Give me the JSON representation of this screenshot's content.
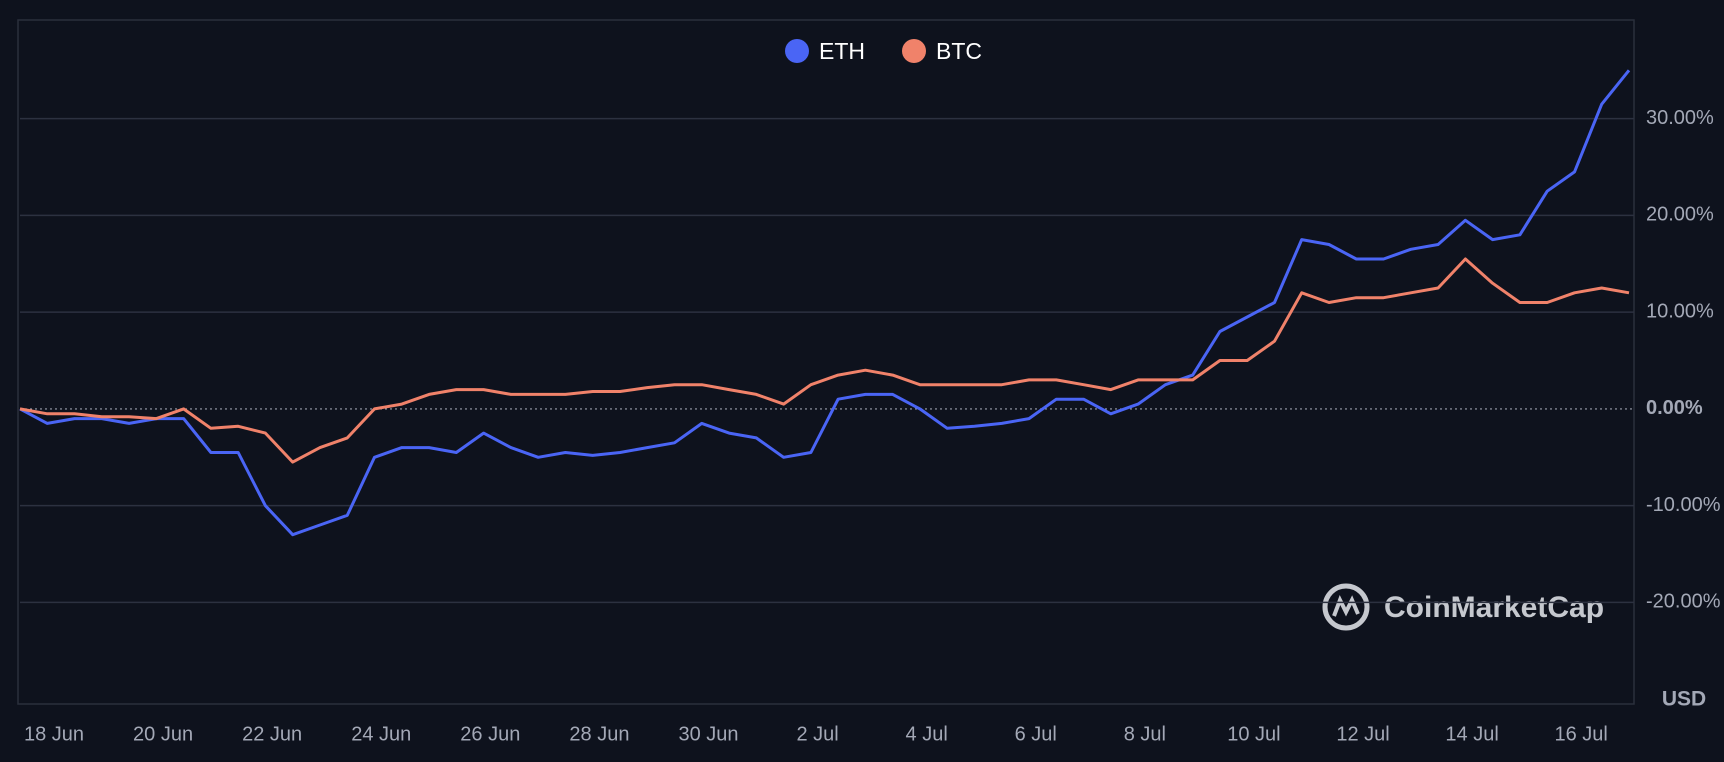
{
  "chart_data": {
    "type": "line",
    "categories": [
      "18 Jun",
      null,
      null,
      null,
      "20 Jun",
      null,
      null,
      null,
      "22 Jun",
      null,
      null,
      null,
      "24 Jun",
      null,
      null,
      null,
      "26 Jun",
      null,
      null,
      null,
      "28 Jun",
      null,
      null,
      null,
      "30 Jun",
      null,
      null,
      null,
      "2 Jul",
      null,
      null,
      null,
      "4 Jul",
      null,
      null,
      null,
      "6 Jul",
      null,
      null,
      null,
      "8 Jul",
      null,
      null,
      null,
      "10 Jul",
      null,
      null,
      null,
      "12 Jul",
      null,
      null,
      null,
      "14 Jul",
      null,
      null,
      null,
      "16 Jul",
      null,
      null,
      null
    ],
    "series": [
      {
        "name": "ETH",
        "color": "#4a65f5",
        "values": [
          0,
          -1.5,
          -1,
          -1,
          -1.5,
          -1,
          -1,
          -4.5,
          -4.5,
          -10,
          -13,
          -12,
          -11,
          -5,
          -4,
          -4,
          -4.5,
          -2.5,
          -4,
          -5,
          -4.5,
          -4.8,
          -4.5,
          -4,
          -3.5,
          -1.5,
          -2.5,
          -3,
          -5,
          -4.5,
          1,
          1.5,
          1.5,
          0,
          -2,
          -1.8,
          -1.5,
          -1,
          1,
          1,
          -0.5,
          0.5,
          2.5,
          3.5,
          8,
          9.5,
          11,
          17.5,
          17,
          15.5,
          15.5,
          16.5,
          17,
          19.5,
          17.5,
          18,
          22.5,
          24.5,
          31.5,
          35
        ]
      },
      {
        "name": "BTC",
        "color": "#f0826a",
        "values": [
          0,
          -0.5,
          -0.5,
          -0.8,
          -0.8,
          -1,
          0,
          -2,
          -1.8,
          -2.5,
          -5.5,
          -4,
          -3,
          0,
          0.5,
          1.5,
          2,
          2,
          1.5,
          1.5,
          1.5,
          1.8,
          1.8,
          2.2,
          2.5,
          2.5,
          2,
          1.5,
          0.5,
          2.5,
          3.5,
          4,
          3.5,
          2.5,
          2.5,
          2.5,
          2.5,
          3,
          3,
          2.5,
          2,
          3,
          3,
          3,
          5,
          5,
          7,
          12,
          11,
          11.5,
          11.5,
          12,
          12.5,
          15.5,
          13,
          11,
          11,
          12,
          12.5,
          12
        ]
      }
    ],
    "ylim": [
      -30.5,
      40.2
    ],
    "yticks": [
      {
        "value": -20,
        "label": "-20.00%"
      },
      {
        "value": -10,
        "label": "-10.00%"
      },
      {
        "value": 0,
        "label": "0.00%"
      },
      {
        "value": 10,
        "label": "10.00%"
      },
      {
        "value": 20,
        "label": "20.00%"
      },
      {
        "value": 30,
        "label": "30.00%"
      }
    ],
    "grid": true,
    "legend": "top",
    "currency_label": "USD",
    "watermark": "CoinMarketCap"
  }
}
